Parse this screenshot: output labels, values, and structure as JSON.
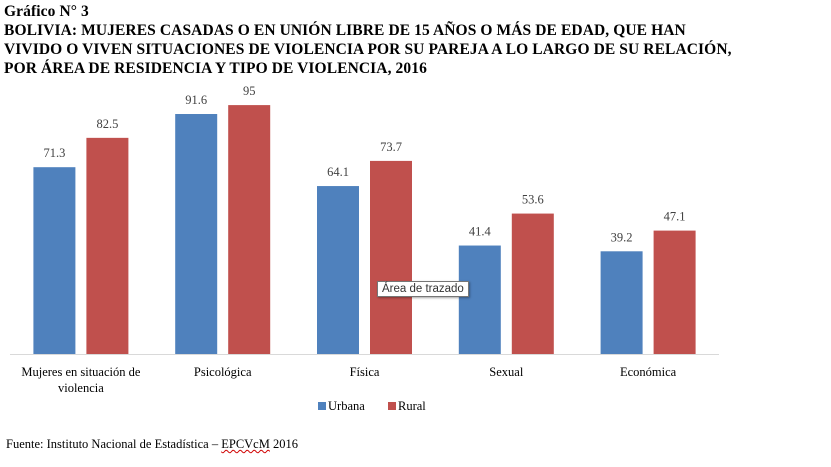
{
  "header": {
    "label": "Gráfico N° 3",
    "title_lines": [
      "BOLIVIA: MUJERES CASADAS O EN UNIÓN LIBRE DE 15 AÑOS O MÁS DE EDAD, QUE HAN",
      "VIVIDO O VIVEN SITUACIONES DE VIOLENCIA POR SU PAREJA A LO LARGO DE SU RELACIÓN,",
      "POR ÁREA DE RESIDENCIA Y TIPO DE VIOLENCIA, 2016"
    ]
  },
  "chart_data": {
    "type": "bar",
    "title": "BOLIVIA: MUJERES CASADAS O EN UNIÓN LIBRE DE 15 AÑOS O MÁS DE EDAD, QUE HAN VIVIDO O VIVEN SITUACIONES DE VIOLENCIA POR SU PAREJA A LO LARGO DE SU RELACIÓN, POR ÁREA DE RESIDENCIA Y TIPO DE VIOLENCIA, 2016",
    "categories": [
      [
        "Mujeres en situación de",
        "violencia"
      ],
      [
        "Psicológica"
      ],
      [
        "Física"
      ],
      [
        "Sexual"
      ],
      [
        "Económica"
      ]
    ],
    "series": [
      {
        "name": "Urbana",
        "color": "#4f81bd",
        "values": [
          71.3,
          91.6,
          64.1,
          41.4,
          39.2
        ],
        "labels": [
          "71.3",
          "91.6",
          "64.1",
          "41.4",
          "39.2"
        ]
      },
      {
        "name": "Rural",
        "color": "#c0504d",
        "values": [
          82.5,
          95,
          73.7,
          53.6,
          47.1
        ],
        "labels": [
          "82.5",
          "95",
          "73.7",
          "53.6",
          "47.1"
        ]
      }
    ],
    "ylim": [
      0,
      100
    ],
    "grid": false,
    "y_axis_visible": false,
    "legend_position": "bottom-center",
    "data_labels": true
  },
  "tooltip": {
    "text": "Área de trazado"
  },
  "footer": {
    "text_before": "Fuente: Instituto Nacional de Estadística – ",
    "text_underlined": "EPCVcM",
    "text_after": " 2016"
  }
}
